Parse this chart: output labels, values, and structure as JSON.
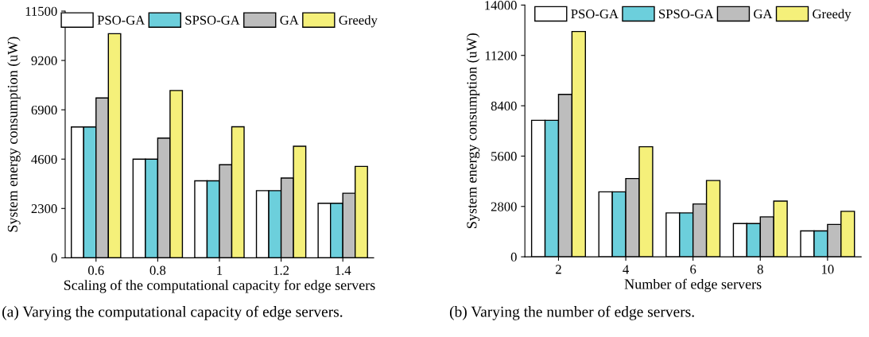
{
  "chart_data": [
    {
      "type": "bar",
      "categories": [
        "0.6",
        "0.8",
        "1",
        "1.2",
        "1.4"
      ],
      "xlabel": "Scaling of the computational capacity for edge servers",
      "ylabel": "System energy consumption (uW)",
      "ylim": [
        0,
        11500
      ],
      "yticks": [
        0,
        2300,
        4600,
        6900,
        9200,
        11500
      ],
      "legend": "top",
      "grid": false,
      "annotations": [
        "(a) Varying the computational capacity of edge servers."
      ],
      "series": [
        {
          "name": "PSO-GA",
          "color": "#ffffff",
          "values": [
            6100,
            4600,
            3590,
            3130,
            2540
          ]
        },
        {
          "name": "SPSO-GA",
          "color": "#6ccfdc",
          "values": [
            6100,
            4600,
            3590,
            3130,
            2540
          ]
        },
        {
          "name": "GA",
          "color": "#bdbdbd",
          "values": [
            7450,
            5580,
            4340,
            3720,
            3010
          ]
        },
        {
          "name": "Greedy",
          "color": "#f5f07a",
          "values": [
            10450,
            7800,
            6110,
            5200,
            4260
          ]
        }
      ]
    },
    {
      "type": "bar",
      "categories": [
        "2",
        "4",
        "6",
        "8",
        "10"
      ],
      "xlabel": "Number of edge servers",
      "ylabel": "System energy consumption (uW)",
      "ylim": [
        0,
        14000
      ],
      "yticks": [
        0,
        2800,
        5600,
        8400,
        11200,
        14000
      ],
      "legend": "top",
      "grid": false,
      "annotations": [
        "(b) Varying the number of edge servers."
      ],
      "series": [
        {
          "name": "PSO-GA",
          "color": "#ffffff",
          "values": [
            7590,
            3610,
            2440,
            1850,
            1440
          ]
        },
        {
          "name": "SPSO-GA",
          "color": "#6ccfdc",
          "values": [
            7590,
            3610,
            2440,
            1850,
            1440
          ]
        },
        {
          "name": "GA",
          "color": "#bdbdbd",
          "values": [
            9030,
            4350,
            2940,
            2220,
            1800
          ]
        },
        {
          "name": "Greedy",
          "color": "#f5f07a",
          "values": [
            12530,
            6120,
            4240,
            3100,
            2530
          ]
        }
      ]
    }
  ]
}
